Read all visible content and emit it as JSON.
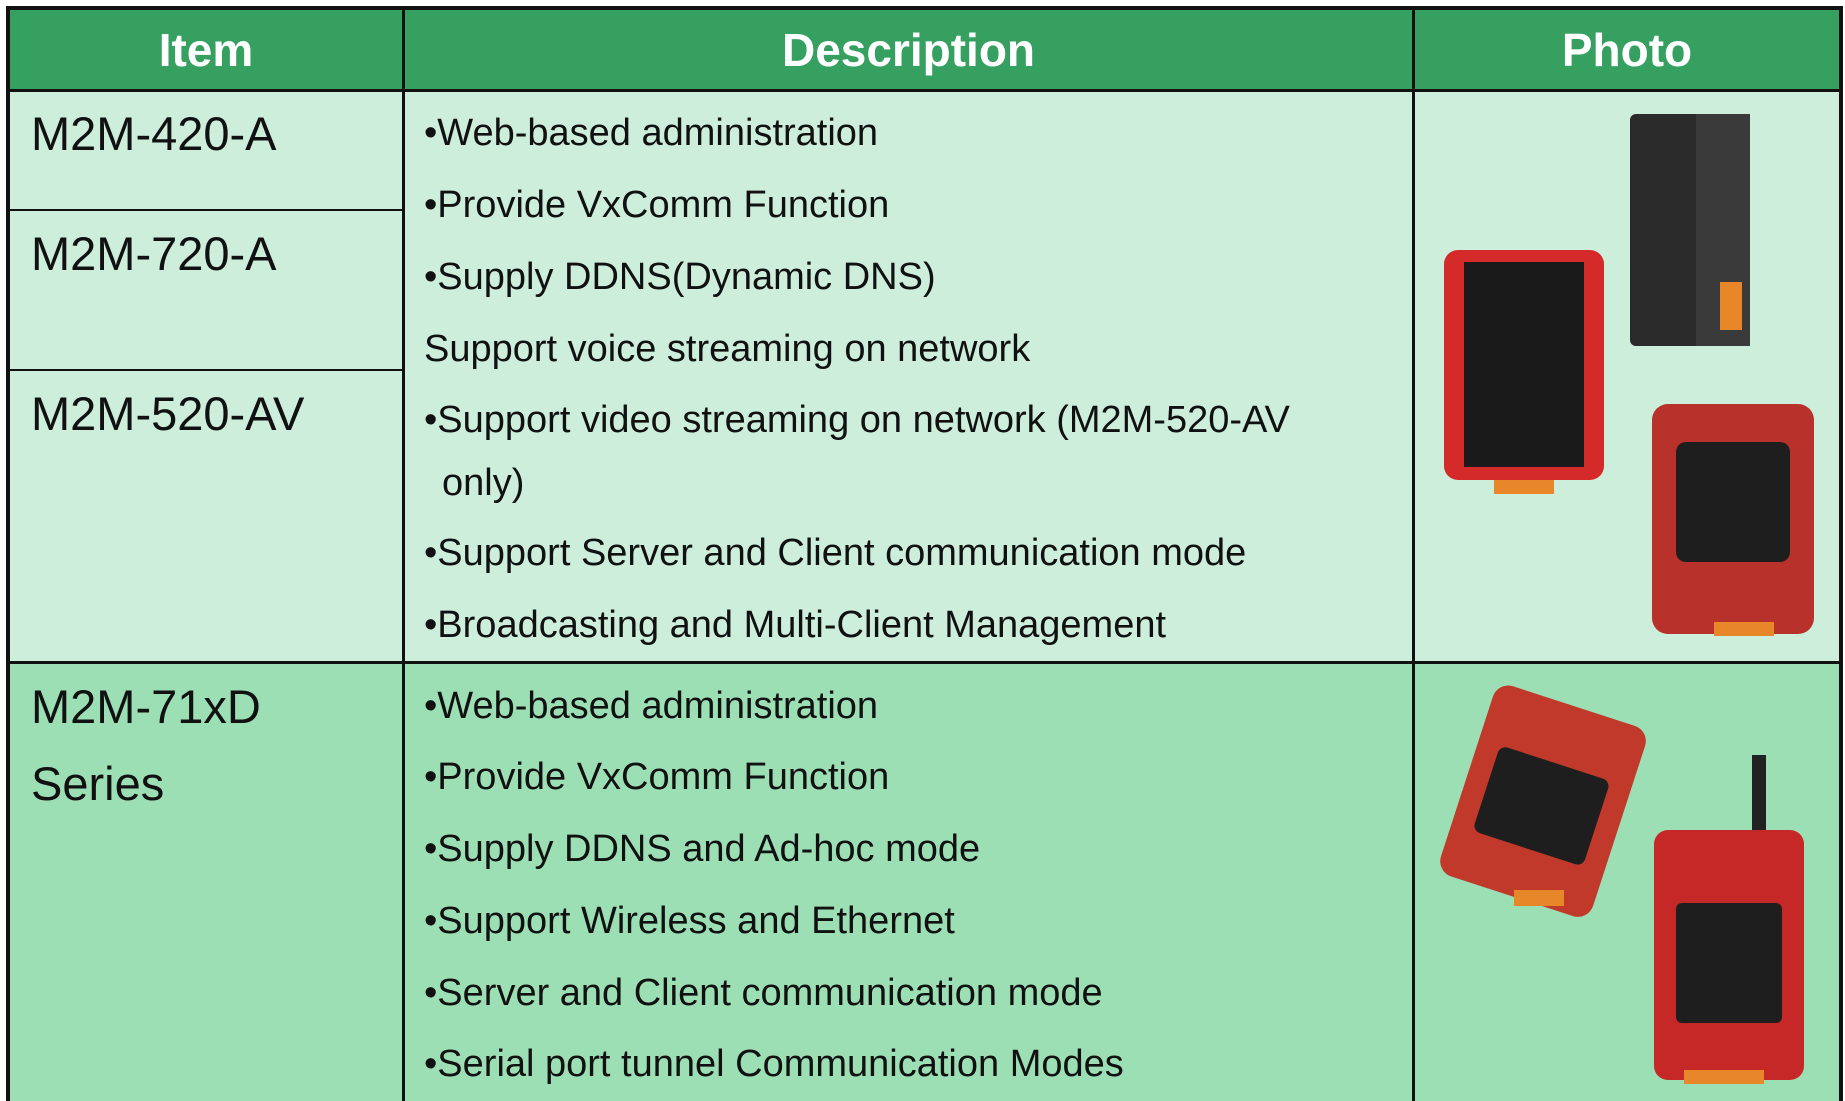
{
  "table": {
    "header": [
      "Item",
      "Description",
      "Photo"
    ],
    "rows": [
      {
        "items": [
          "M2M-420-A",
          "M2M-720-A",
          "M2M-520-AV"
        ],
        "description": [
          "•Web-based administration",
          "•Provide VxComm Function",
          "•Supply DDNS(Dynamic DNS)",
          "Support voice streaming on network",
          "•Support video streaming on network (M2M-520-AV only)",
          "•Support Server and Client communication mode",
          "•Broadcasting and Multi-Client Management"
        ]
      },
      {
        "items": [
          "M2M-71xD Series"
        ],
        "description": [
          "•Web-based administration",
          "•Provide VxComm Function",
          "•Supply DDNS and Ad-hoc mode",
          "•Support Wireless and Ethernet",
          "•Server and Client communication mode",
          "•Serial port tunnel Communication Modes"
        ]
      }
    ]
  }
}
